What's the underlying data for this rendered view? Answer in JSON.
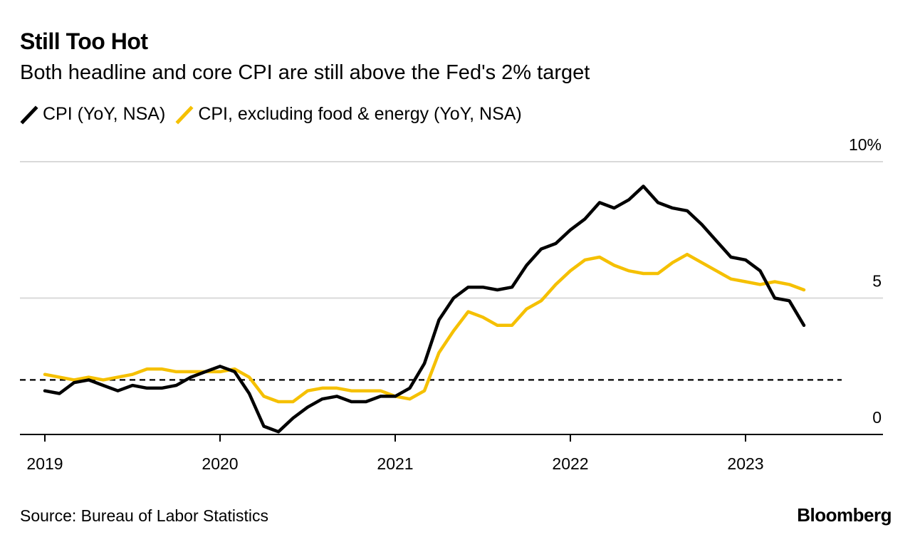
{
  "header": {
    "title": "Still Too Hot",
    "subtitle": "Both headline and core CPI are still above the Fed's 2% target"
  },
  "legend": {
    "items": [
      {
        "label": "CPI (YoY, NSA)",
        "color": "#000000"
      },
      {
        "label": "CPI, excluding food & energy (YoY, NSA)",
        "color": "#f5c000"
      }
    ]
  },
  "footer": {
    "source": "Source: Bureau of Labor Statistics",
    "brand": "Bloomberg"
  },
  "chart_data": {
    "type": "line",
    "x_start": "2019-01",
    "x_labels": [
      "2019",
      "2020",
      "2021",
      "2022",
      "2023"
    ],
    "y_ticks": [
      {
        "value": 10,
        "label": "10%"
      },
      {
        "value": 5,
        "label": "5"
      },
      {
        "value": 0,
        "label": "0"
      }
    ],
    "ylim": [
      0,
      10
    ],
    "grid": true,
    "target_line": 2,
    "series": [
      {
        "name": "CPI (YoY, NSA)",
        "color": "#000000",
        "values": [
          1.6,
          1.5,
          1.9,
          2.0,
          1.8,
          1.6,
          1.8,
          1.7,
          1.7,
          1.8,
          2.1,
          2.3,
          2.5,
          2.3,
          1.5,
          0.3,
          0.1,
          0.6,
          1.0,
          1.3,
          1.4,
          1.2,
          1.2,
          1.4,
          1.4,
          1.7,
          2.6,
          4.2,
          5.0,
          5.4,
          5.4,
          5.3,
          5.4,
          6.2,
          6.8,
          7.0,
          7.5,
          7.9,
          8.5,
          8.3,
          8.6,
          9.1,
          8.5,
          8.3,
          8.2,
          7.7,
          7.1,
          6.5,
          6.4,
          6.0,
          5.0,
          4.9,
          4.0
        ]
      },
      {
        "name": "CPI, excluding food & energy (YoY, NSA)",
        "color": "#f5c000",
        "values": [
          2.2,
          2.1,
          2.0,
          2.1,
          2.0,
          2.1,
          2.2,
          2.4,
          2.4,
          2.3,
          2.3,
          2.3,
          2.3,
          2.4,
          2.1,
          1.4,
          1.2,
          1.2,
          1.6,
          1.7,
          1.7,
          1.6,
          1.6,
          1.6,
          1.4,
          1.3,
          1.6,
          3.0,
          3.8,
          4.5,
          4.3,
          4.0,
          4.0,
          4.6,
          4.9,
          5.5,
          6.0,
          6.4,
          6.5,
          6.2,
          6.0,
          5.9,
          5.9,
          6.3,
          6.6,
          6.3,
          6.0,
          5.7,
          5.6,
          5.5,
          5.6,
          5.5,
          5.3
        ]
      }
    ]
  }
}
